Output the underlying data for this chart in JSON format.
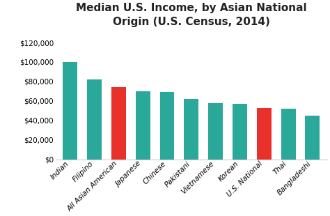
{
  "title": "Median U.S. Income, by Asian National\nOrigin (U.S. Census, 2014)",
  "categories": [
    "Indian",
    "Filipino",
    "All Asian American",
    "Japanese",
    "Chinese",
    "Pakistani",
    "Vietnamese",
    "Korean",
    "U.S. National",
    "Thai",
    "Bangladeshi"
  ],
  "values": [
    100000,
    82000,
    74000,
    70000,
    69000,
    62000,
    58000,
    57000,
    53000,
    52000,
    45000
  ],
  "colors": [
    "#2aa89a",
    "#2aa89a",
    "#e8312a",
    "#2aa89a",
    "#2aa89a",
    "#2aa89a",
    "#2aa89a",
    "#2aa89a",
    "#e8312a",
    "#2aa89a",
    "#2aa89a"
  ],
  "ylim": [
    0,
    130000
  ],
  "yticks": [
    0,
    20000,
    40000,
    60000,
    80000,
    100000,
    120000
  ],
  "background_color": "#ffffff",
  "title_fontsize": 11,
  "tick_label_fontsize": 7.5
}
